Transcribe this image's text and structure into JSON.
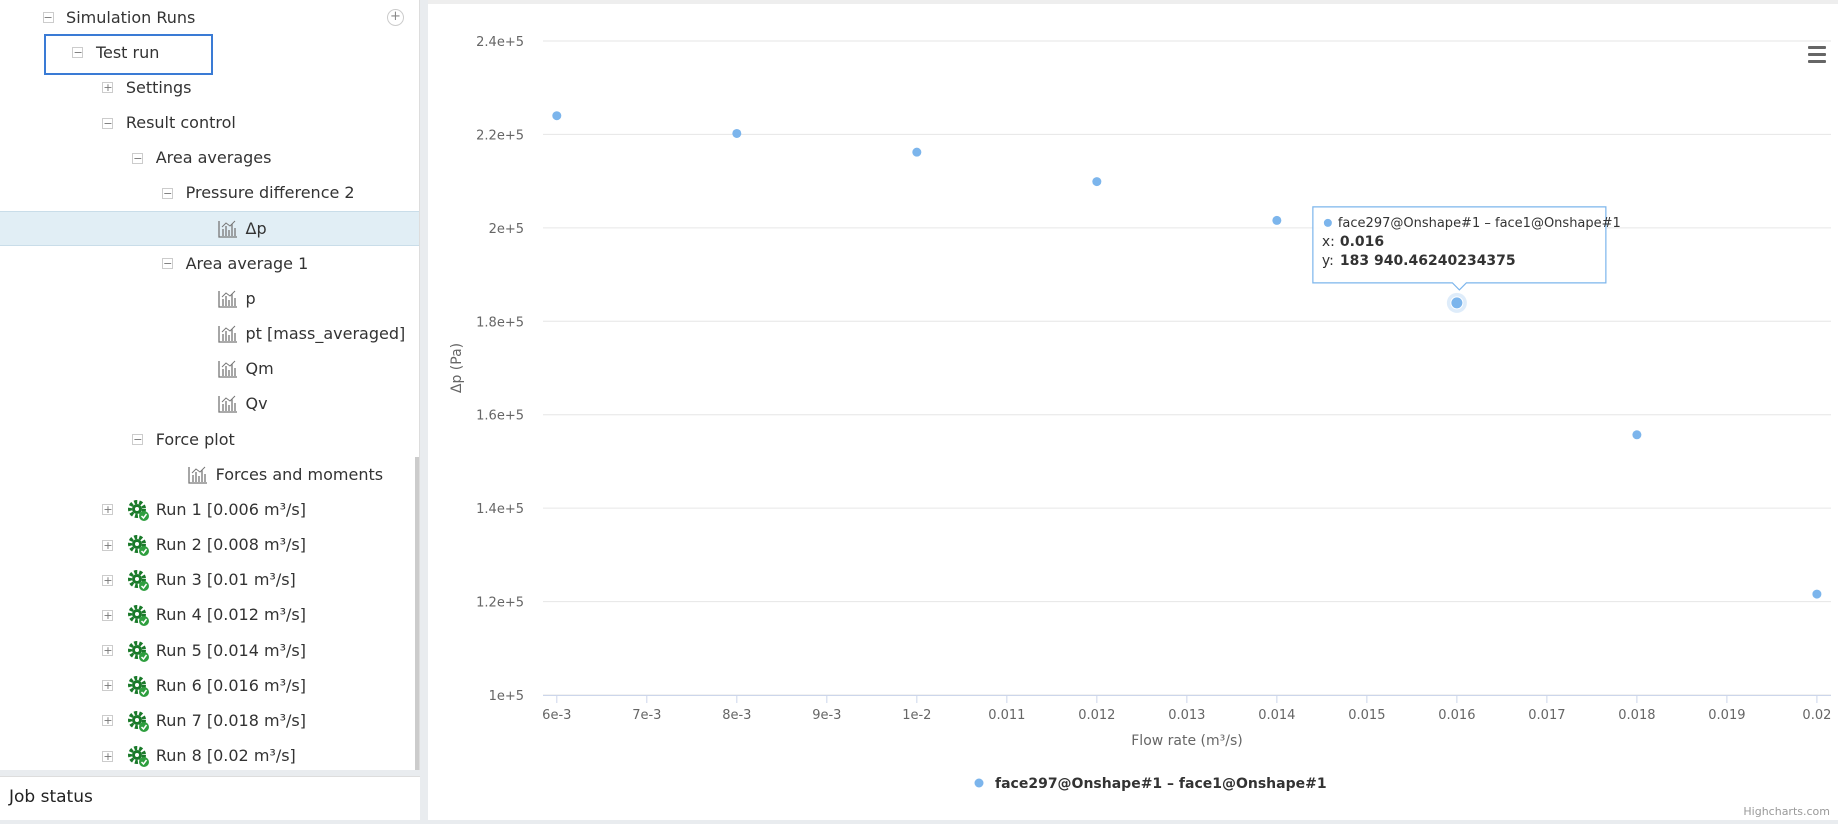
{
  "tree": {
    "label": "Simulation Runs",
    "children": [
      {
        "label": "Test run",
        "focused": true,
        "children": [
          {
            "label": "Settings",
            "collapsed": true
          },
          {
            "label": "Result control",
            "children": [
              {
                "label": "Area averages",
                "children": [
                  {
                    "label": "Pressure difference 2",
                    "children": [
                      {
                        "label": "Δp",
                        "icon": "chart",
                        "selected": true
                      }
                    ]
                  },
                  {
                    "label": "Area average 1",
                    "children": [
                      {
                        "label": "p",
                        "icon": "chart"
                      },
                      {
                        "label": "pt [mass_averaged]",
                        "icon": "chart"
                      },
                      {
                        "label": "Qm",
                        "icon": "chart"
                      },
                      {
                        "label": "Qv",
                        "icon": "chart"
                      }
                    ]
                  }
                ]
              },
              {
                "label": "Force plot",
                "children": [
                  {
                    "label": "Forces and moments",
                    "icon": "chart"
                  }
                ]
              }
            ]
          },
          {
            "label": "Run 1 [0.006 m³/s]",
            "icon": "gear",
            "collapsed": true
          },
          {
            "label": "Run 2 [0.008 m³/s]",
            "icon": "gear",
            "collapsed": true
          },
          {
            "label": "Run 3 [0.01 m³/s]",
            "icon": "gear",
            "collapsed": true
          },
          {
            "label": "Run 4 [0.012 m³/s]",
            "icon": "gear",
            "collapsed": true
          },
          {
            "label": "Run 5 [0.014 m³/s]",
            "icon": "gear",
            "collapsed": true
          },
          {
            "label": "Run 6 [0.016 m³/s]",
            "icon": "gear",
            "collapsed": true
          },
          {
            "label": "Run 7 [0.018 m³/s]",
            "icon": "gear",
            "collapsed": true
          },
          {
            "label": "Run 8 [0.02 m³/s]",
            "icon": "gear",
            "collapsed": true
          }
        ]
      }
    ]
  },
  "job_status": {
    "title": "Job status"
  },
  "chart_data": {
    "type": "scatter",
    "x_label": "Flow rate (m³/s)",
    "y_label": "Δp (Pa)",
    "x": [
      0.006,
      0.008,
      0.01,
      0.012,
      0.014,
      0.016,
      0.018,
      0.02
    ],
    "series": [
      {
        "name": "face297@Onshape#1 – face1@Onshape#1",
        "color": "#7cb5ec",
        "values": [
          224000,
          220200,
          216200,
          209900,
          201600,
          183940.46240234375,
          155700,
          121600
        ]
      }
    ],
    "xlim": [
      0.006,
      0.02
    ],
    "xticks": [
      {
        "value": 0.006,
        "label": "6e-3"
      },
      {
        "value": 0.007,
        "label": "7e-3"
      },
      {
        "value": 0.008,
        "label": "8e-3"
      },
      {
        "value": 0.009,
        "label": "9e-3"
      },
      {
        "value": 0.01,
        "label": "1e-2"
      },
      0.011,
      0.012,
      0.013,
      0.014,
      0.015,
      0.016,
      0.017,
      0.018,
      0.019,
      0.02
    ],
    "ylim": [
      100000,
      240000
    ],
    "yticks": [
      {
        "value": 100000,
        "label": "1e+5"
      },
      {
        "value": 120000,
        "label": "1.2e+5"
      },
      {
        "value": 140000,
        "label": "1.4e+5"
      },
      {
        "value": 160000,
        "label": "1.6e+5"
      },
      {
        "value": 180000,
        "label": "1.8e+5"
      },
      {
        "value": 200000,
        "label": "2e+5"
      },
      {
        "value": 220000,
        "label": "2.2e+5"
      },
      {
        "value": 240000,
        "label": "2.4e+5"
      }
    ],
    "grid": true,
    "legend": "bottom",
    "tooltip": {
      "x_label": "x:",
      "x": 0.016,
      "y_label": "y:",
      "y": "183 940.46240234375"
    },
    "credits": "Highcharts.com"
  }
}
